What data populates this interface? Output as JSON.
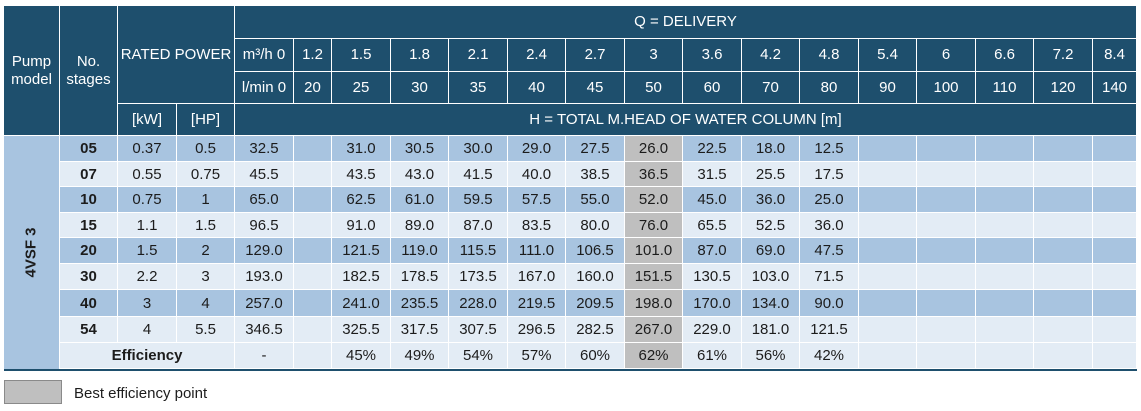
{
  "headers": {
    "pump_model": "Pump model",
    "no_stages": "No. stages",
    "rated_power": "RATED POWER",
    "kw": "[kW]",
    "hp": "[HP]",
    "q_delivery": "Q = DELIVERY",
    "m3h_label": "m³/h 0",
    "lmin_label": "l/min 0",
    "h_total": "H = TOTAL M.HEAD OF WATER COLUMN [m]"
  },
  "flow_m3h": [
    "1.2",
    "1.5",
    "1.8",
    "2.1",
    "2.4",
    "2.7",
    "3",
    "3.6",
    "4.2",
    "4.8",
    "5.4",
    "6",
    "6.6",
    "7.2",
    "8.4"
  ],
  "flow_lmin": [
    "20",
    "25",
    "30",
    "35",
    "40",
    "45",
    "50",
    "60",
    "70",
    "80",
    "90",
    "100",
    "110",
    "120",
    "140"
  ],
  "model": "4VSF 3",
  "rows": [
    {
      "stage": "05",
      "kw": "0.37",
      "hp": "0.5",
      "h0": "32.5",
      "heads": [
        "",
        "31.0",
        "30.5",
        "30.0",
        "29.0",
        "27.5",
        "26.0",
        "22.5",
        "18.0",
        "12.5",
        "",
        "",
        "",
        "",
        ""
      ]
    },
    {
      "stage": "07",
      "kw": "0.55",
      "hp": "0.75",
      "h0": "45.5",
      "heads": [
        "",
        "43.5",
        "43.0",
        "41.5",
        "40.0",
        "38.5",
        "36.5",
        "31.5",
        "25.5",
        "17.5",
        "",
        "",
        "",
        "",
        ""
      ]
    },
    {
      "stage": "10",
      "kw": "0.75",
      "hp": "1",
      "h0": "65.0",
      "heads": [
        "",
        "62.5",
        "61.0",
        "59.5",
        "57.5",
        "55.0",
        "52.0",
        "45.0",
        "36.0",
        "25.0",
        "",
        "",
        "",
        "",
        ""
      ]
    },
    {
      "stage": "15",
      "kw": "1.1",
      "hp": "1.5",
      "h0": "96.5",
      "heads": [
        "",
        "91.0",
        "89.0",
        "87.0",
        "83.5",
        "80.0",
        "76.0",
        "65.5",
        "52.5",
        "36.0",
        "",
        "",
        "",
        "",
        ""
      ]
    },
    {
      "stage": "20",
      "kw": "1.5",
      "hp": "2",
      "h0": "129.0",
      "heads": [
        "",
        "121.5",
        "119.0",
        "115.5",
        "111.0",
        "106.5",
        "101.0",
        "87.0",
        "69.0",
        "47.5",
        "",
        "",
        "",
        "",
        ""
      ]
    },
    {
      "stage": "30",
      "kw": "2.2",
      "hp": "3",
      "h0": "193.0",
      "heads": [
        "",
        "182.5",
        "178.5",
        "173.5",
        "167.0",
        "160.0",
        "151.5",
        "130.5",
        "103.0",
        "71.5",
        "",
        "",
        "",
        "",
        ""
      ]
    },
    {
      "stage": "40",
      "kw": "3",
      "hp": "4",
      "h0": "257.0",
      "heads": [
        "",
        "241.0",
        "235.5",
        "228.0",
        "219.5",
        "209.5",
        "198.0",
        "170.0",
        "134.0",
        "90.0",
        "",
        "",
        "",
        "",
        ""
      ]
    },
    {
      "stage": "54",
      "kw": "4",
      "hp": "5.5",
      "h0": "346.5",
      "heads": [
        "",
        "325.5",
        "317.5",
        "307.5",
        "296.5",
        "282.5",
        "267.0",
        "229.0",
        "181.0",
        "121.5",
        "",
        "",
        "",
        "",
        ""
      ]
    }
  ],
  "efficiency": {
    "label": "Efficiency",
    "h0": "-",
    "values": [
      "",
      "45%",
      "49%",
      "54%",
      "57%",
      "60%",
      "62%",
      "61%",
      "56%",
      "42%",
      "",
      "",
      "",
      "",
      ""
    ]
  },
  "best_efficiency_index": 6,
  "legend": {
    "label": "Best efficiency point",
    "color": "#bfbfbf"
  },
  "colors": {
    "header": "#1e4f6d",
    "row_dark": "#a8c4e0",
    "row_light": "#e3ecf5",
    "bep": "#bfbfbf"
  }
}
